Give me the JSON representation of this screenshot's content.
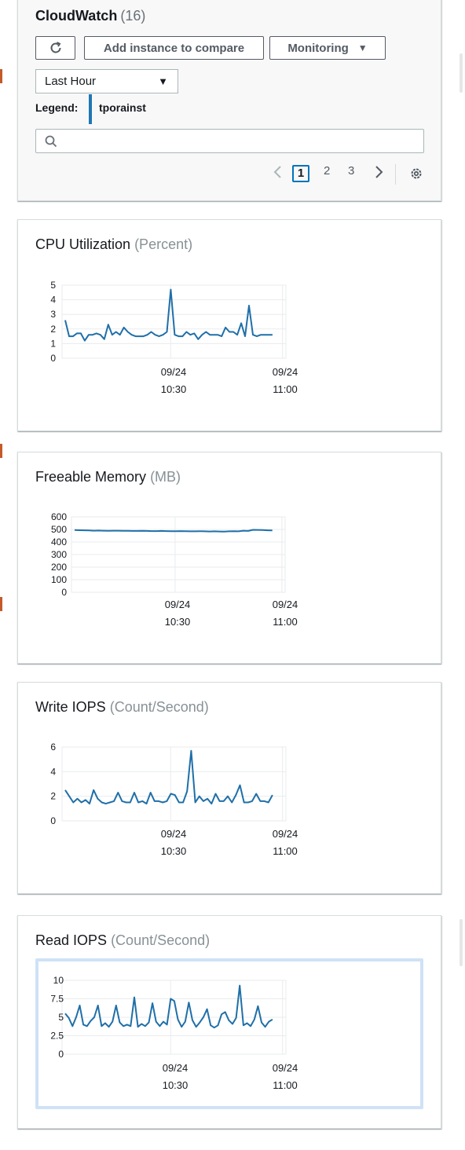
{
  "header": {
    "title": "CloudWatch",
    "count": "(16)",
    "add_instance_label": "Add instance to compare",
    "monitoring_label": "Monitoring",
    "time_range_value": "Last Hour",
    "legend_label": "Legend:",
    "legend_instance": "tporainst",
    "legend_color": "#1f77b4",
    "search_placeholder": "",
    "pages": [
      "1",
      "2",
      "3"
    ],
    "current_page": "1"
  },
  "charts": [
    {
      "title": "CPU Utilization",
      "unit": "(Percent)",
      "chart_data": {
        "type": "line",
        "y_ticks": [
          "5",
          "4",
          "3",
          "2",
          "1",
          "0"
        ],
        "ylim": [
          0,
          5
        ],
        "x_ticks": [
          {
            "date": "09/24",
            "time": "10:30"
          },
          {
            "date": "09/24",
            "time": "11:00"
          }
        ],
        "series": [
          {
            "values": [
              2.6,
              1.5,
              1.5,
              1.7,
              1.7,
              1.2,
              1.6,
              1.6,
              1.7,
              1.6,
              1.3,
              2.3,
              1.6,
              1.8,
              1.6,
              2.1,
              1.8,
              1.6,
              1.5,
              1.5,
              1.5,
              1.6,
              1.8,
              1.6,
              1.5,
              1.6,
              1.8,
              4.7,
              1.6,
              1.5,
              1.5,
              1.8,
              1.6,
              1.7,
              1.3,
              1.6,
              1.8,
              1.6,
              1.6,
              1.6,
              1.5,
              2.1,
              1.8,
              1.8,
              1.6,
              2.4,
              1.5,
              3.6,
              1.6,
              1.5,
              1.6,
              1.6,
              1.6,
              1.6
            ]
          }
        ]
      }
    },
    {
      "title": "Freeable Memory",
      "unit": "(MB)",
      "chart_data": {
        "type": "line",
        "y_ticks": [
          "600",
          "500",
          "400",
          "300",
          "200",
          "100",
          "0"
        ],
        "ylim": [
          0,
          600
        ],
        "x_ticks": [
          {
            "date": "09/24",
            "time": "10:30"
          },
          {
            "date": "09/24",
            "time": "11:00"
          }
        ],
        "series": [
          {
            "values": [
              495,
              494,
              493,
              492,
              490,
              491,
              490,
              489,
              490,
              490,
              489,
              489,
              488,
              488,
              489,
              488,
              487,
              487,
              488,
              487,
              486,
              486,
              487,
              486,
              485,
              485,
              486,
              485,
              484,
              485,
              484,
              483,
              485,
              486,
              485,
              490,
              488,
              497,
              496,
              495,
              493,
              492
            ]
          }
        ]
      }
    },
    {
      "title": "Write IOPS",
      "unit": "(Count/Second)",
      "chart_data": {
        "type": "line",
        "y_ticks": [
          "6",
          "4",
          "2",
          "0"
        ],
        "ylim": [
          0,
          6
        ],
        "x_ticks": [
          {
            "date": "09/24",
            "time": "10:30"
          },
          {
            "date": "09/24",
            "time": "11:00"
          }
        ],
        "series": [
          {
            "values": [
              2.5,
              2.0,
              1.5,
              1.8,
              1.5,
              1.7,
              1.4,
              2.5,
              1.8,
              1.5,
              1.4,
              1.5,
              1.6,
              2.3,
              1.6,
              1.5,
              1.5,
              2.3,
              1.5,
              1.6,
              1.4,
              2.3,
              1.6,
              1.6,
              1.5,
              1.6,
              2.2,
              2.1,
              1.5,
              1.5,
              2.4,
              5.7,
              1.5,
              2.0,
              1.6,
              1.8,
              1.4,
              2.2,
              1.6,
              1.6,
              2.0,
              1.5,
              2.1,
              2.9,
              1.5,
              1.5,
              1.6,
              2.2,
              1.6,
              1.6,
              1.5,
              2.1
            ]
          }
        ]
      }
    },
    {
      "title": "Read IOPS",
      "unit": "(Count/Second)",
      "chart_data": {
        "type": "line",
        "y_ticks": [
          "10",
          "7.5",
          "5",
          "2.5",
          "0"
        ],
        "ylim": [
          0,
          10
        ],
        "x_ticks": [
          {
            "date": "09/24",
            "time": "10:30"
          },
          {
            "date": "09/24",
            "time": "11:00"
          }
        ],
        "series": [
          {
            "values": [
              5.5,
              4.9,
              3.8,
              5.0,
              6.6,
              4.0,
              3.8,
              4.5,
              5.0,
              6.6,
              3.8,
              4.2,
              3.7,
              4.4,
              6.6,
              4.3,
              3.8,
              4.0,
              3.8,
              7.7,
              3.7,
              4.1,
              3.8,
              4.3,
              6.9,
              4.4,
              3.8,
              4.4,
              4.0,
              7.5,
              7.2,
              4.7,
              3.7,
              4.4,
              7.0,
              4.6,
              3.7,
              4.3,
              5.0,
              6.1,
              3.9,
              3.6,
              3.9,
              5.4,
              5.7,
              4.6,
              4.1,
              4.9,
              9.3,
              3.9,
              4.2,
              3.8,
              4.7,
              6.5,
              4.3,
              3.7,
              4.4,
              4.7
            ]
          }
        ]
      }
    }
  ]
}
